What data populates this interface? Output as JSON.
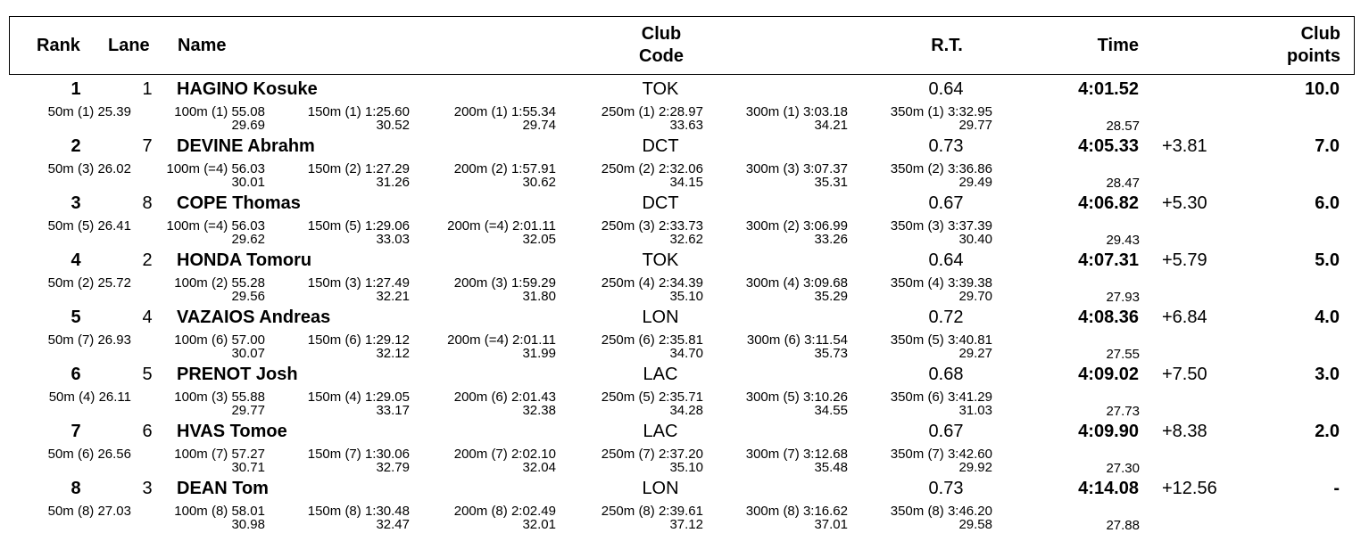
{
  "header": {
    "rank": "Rank",
    "lane": "Lane",
    "name": "Name",
    "club_code": "Club Code",
    "rt": "R.T.",
    "time": "Time",
    "club_points": "Club points"
  },
  "rows": [
    {
      "rank": "1",
      "lane": "1",
      "name": "HAGINO Kosuke",
      "club": "TOK",
      "rt": "0.64",
      "time": "4:01.52",
      "points": "10.0",
      "splits": [
        "50m (1) 25.39",
        "100m (1) 55.08",
        "150m (1) 1:25.60",
        "200m (1) 1:55.34",
        "250m (1) 2:28.97",
        "300m (1) 3:03.18",
        "350m (1) 3:32.95"
      ],
      "laps": [
        "29.69",
        "30.52",
        "29.74",
        "33.63",
        "34.21",
        "29.77"
      ],
      "last_lap": "28.57"
    },
    {
      "rank": "2",
      "lane": "7",
      "name": "DEVINE Abrahm",
      "club": "DCT",
      "rt": "0.73",
      "time": "4:05.33",
      "behind": "+3.81",
      "points": "7.0",
      "splits": [
        "50m (3) 26.02",
        "100m (=4) 56.03",
        "150m (2) 1:27.29",
        "200m (2) 1:57.91",
        "250m (2) 2:32.06",
        "300m (3) 3:07.37",
        "350m (2) 3:36.86"
      ],
      "laps": [
        "30.01",
        "31.26",
        "30.62",
        "34.15",
        "35.31",
        "29.49"
      ],
      "last_lap": "28.47"
    },
    {
      "rank": "3",
      "lane": "8",
      "name": "COPE Thomas",
      "club": "DCT",
      "rt": "0.67",
      "time": "4:06.82",
      "behind": "+5.30",
      "points": "6.0",
      "splits": [
        "50m (5) 26.41",
        "100m (=4) 56.03",
        "150m (5) 1:29.06",
        "200m (=4) 2:01.11",
        "250m (3) 2:33.73",
        "300m (2) 3:06.99",
        "350m (3) 3:37.39"
      ],
      "laps": [
        "29.62",
        "33.03",
        "32.05",
        "32.62",
        "33.26",
        "30.40"
      ],
      "last_lap": "29.43"
    },
    {
      "rank": "4",
      "lane": "2",
      "name": "HONDA Tomoru",
      "club": "TOK",
      "rt": "0.64",
      "time": "4:07.31",
      "behind": "+5.79",
      "points": "5.0",
      "splits": [
        "50m (2) 25.72",
        "100m (2) 55.28",
        "150m (3) 1:27.49",
        "200m (3) 1:59.29",
        "250m (4) 2:34.39",
        "300m (4) 3:09.68",
        "350m (4) 3:39.38"
      ],
      "laps": [
        "29.56",
        "32.21",
        "31.80",
        "35.10",
        "35.29",
        "29.70"
      ],
      "last_lap": "27.93"
    },
    {
      "rank": "5",
      "lane": "4",
      "name": "VAZAIOS Andreas",
      "club": "LON",
      "rt": "0.72",
      "time": "4:08.36",
      "behind": "+6.84",
      "points": "4.0",
      "splits": [
        "50m (7) 26.93",
        "100m (6) 57.00",
        "150m (6) 1:29.12",
        "200m (=4) 2:01.11",
        "250m (6) 2:35.81",
        "300m (6) 3:11.54",
        "350m (5) 3:40.81"
      ],
      "laps": [
        "30.07",
        "32.12",
        "31.99",
        "34.70",
        "35.73",
        "29.27"
      ],
      "last_lap": "27.55"
    },
    {
      "rank": "6",
      "lane": "5",
      "name": "PRENOT Josh",
      "club": "LAC",
      "rt": "0.68",
      "time": "4:09.02",
      "behind": "+7.50",
      "points": "3.0",
      "splits": [
        "50m (4) 26.11",
        "100m (3) 55.88",
        "150m (4) 1:29.05",
        "200m (6) 2:01.43",
        "250m (5) 2:35.71",
        "300m (5) 3:10.26",
        "350m (6) 3:41.29"
      ],
      "laps": [
        "29.77",
        "33.17",
        "32.38",
        "34.28",
        "34.55",
        "31.03"
      ],
      "last_lap": "27.73"
    },
    {
      "rank": "7",
      "lane": "6",
      "name": "HVAS Tomoe",
      "club": "LAC",
      "rt": "0.67",
      "time": "4:09.90",
      "behind": "+8.38",
      "points": "2.0",
      "splits": [
        "50m (6) 26.56",
        "100m (7) 57.27",
        "150m (7) 1:30.06",
        "200m (7) 2:02.10",
        "250m (7) 2:37.20",
        "300m (7) 3:12.68",
        "350m (7) 3:42.60"
      ],
      "laps": [
        "30.71",
        "32.79",
        "32.04",
        "35.10",
        "35.48",
        "29.92"
      ],
      "last_lap": "27.30"
    },
    {
      "rank": "8",
      "lane": "3",
      "name": "DEAN Tom",
      "club": "LON",
      "rt": "0.73",
      "time": "4:14.08",
      "behind": "+12.56",
      "points": "-",
      "splits": [
        "50m (8) 27.03",
        "100m (8) 58.01",
        "150m (8) 1:30.48",
        "200m (8) 2:02.49",
        "250m (8) 2:39.61",
        "300m (8) 3:16.62",
        "350m (8) 3:46.20"
      ],
      "laps": [
        "30.98",
        "32.47",
        "32.01",
        "37.12",
        "37.01",
        "29.58"
      ],
      "last_lap": "27.88"
    }
  ]
}
